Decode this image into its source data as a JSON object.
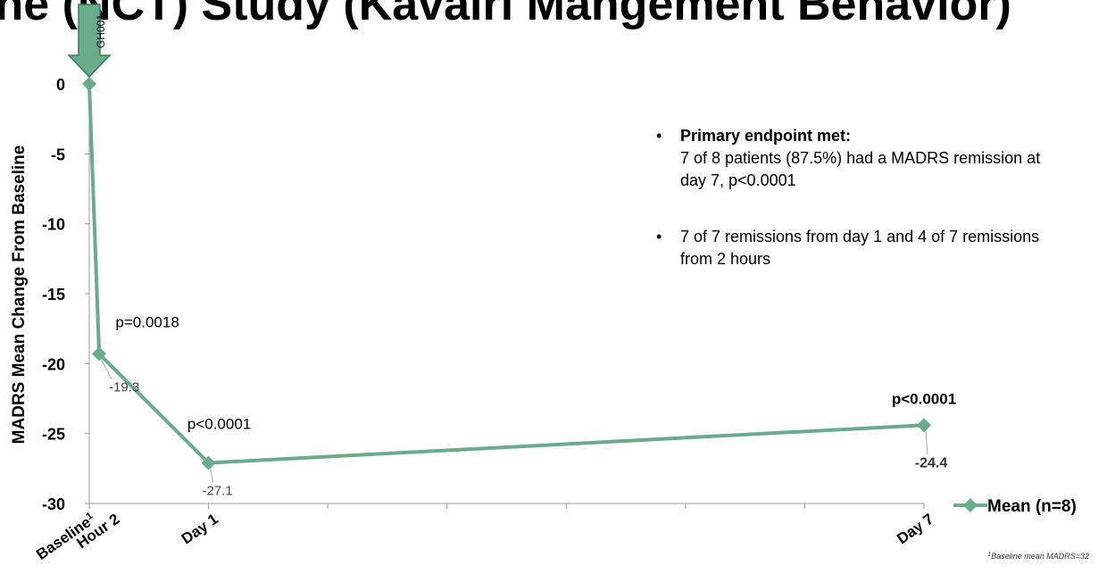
{
  "header": {
    "title": "ine (NCT) Study (Kavalri Mangement Behavior)"
  },
  "chart_data": {
    "type": "line",
    "title": "",
    "ylabel": "MADRS Mean Change From Baseline",
    "xlabel": "",
    "ylim": [
      -30,
      0
    ],
    "yticks": [
      0,
      -5,
      -10,
      -15,
      -20,
      -25,
      -30
    ],
    "x_ticks": [
      {
        "label": "Baseline",
        "sup": "1",
        "day": 0
      },
      {
        "label": "Hour 2",
        "day": 0.083
      },
      {
        "label": "Day 1",
        "day": 1
      },
      {
        "label": "Day 7",
        "day": 7
      }
    ],
    "xlim": [
      0,
      7
    ],
    "series": [
      {
        "name": "Mean (n=8)",
        "color": "#6aab8e",
        "points": [
          {
            "day": 0,
            "y": 0,
            "label": ""
          },
          {
            "day": 0.083,
            "y": -19.3,
            "label": "-19.3"
          },
          {
            "day": 1,
            "y": -27.1,
            "label": "-27.1"
          },
          {
            "day": 7,
            "y": -24.4,
            "label": "-24.4"
          }
        ]
      }
    ],
    "annotations": [
      {
        "text": "p=0.0018",
        "day": 0.083,
        "bold": false
      },
      {
        "text": "p<0.0001",
        "day": 1,
        "bold": false
      },
      {
        "text": "p<0.0001",
        "day": 7,
        "bold": true
      }
    ],
    "arrow_label": "GH001",
    "legend": {
      "position": "bottom-right"
    },
    "footnote": {
      "sup": "1",
      "text": "Baseline mean MADRS=32"
    }
  },
  "notes": [
    {
      "title": "Primary endpoint met:",
      "text": "7 of 8 patients (87.5%) had a MADRS remission at day 7, p<0.0001"
    },
    {
      "title": "",
      "text": "7 of 7 remissions from day 1 and 4 of 7 remissions from 2 hours"
    }
  ],
  "icons": {
    "bullet": "•",
    "marker": "diamond",
    "arrow": "down-arrow"
  }
}
